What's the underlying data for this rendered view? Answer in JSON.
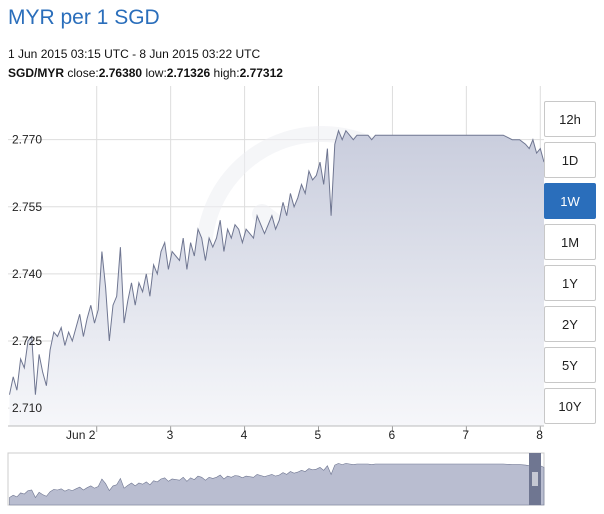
{
  "header": {
    "title": "MYR per 1 SGD",
    "range": "1 Jun 2015 03:15 UTC - 8 Jun 2015 03:22 UTC",
    "pair": "SGD/MYR",
    "close_label": "close:",
    "close_value": "2.76380",
    "low_label": "low:",
    "low_value": "2.71326",
    "high_label": "high:",
    "high_value": "2.77312"
  },
  "periods": [
    {
      "label": "12h",
      "active": false
    },
    {
      "label": "1D",
      "active": false
    },
    {
      "label": "1W",
      "active": true
    },
    {
      "label": "1M",
      "active": false
    },
    {
      "label": "1Y",
      "active": false
    },
    {
      "label": "2Y",
      "active": false
    },
    {
      "label": "5Y",
      "active": false
    },
    {
      "label": "10Y",
      "active": false
    }
  ],
  "colors": {
    "line": "#6f7691",
    "area_top": "#c9cddd",
    "area_bottom": "#f6f7fa",
    "grid": "#dddddd",
    "accent": "#2a6ebb",
    "nav_fill": "#b9bdd0",
    "nav_handle": "#6f7691"
  },
  "chart_data": {
    "type": "area",
    "title": "MYR per 1 SGD",
    "xlabel": "",
    "ylabel": "",
    "ylim": [
      2.706,
      2.782
    ],
    "xlim": [
      0.8,
      8.05
    ],
    "yticks": [
      2.71,
      2.725,
      2.74,
      2.755,
      2.77
    ],
    "ytick_labels": [
      "2.710",
      "2.725",
      "2.740",
      "2.755",
      "2.770"
    ],
    "xticks": [
      {
        "x": 2,
        "label": "Jun 2"
      },
      {
        "x": 3,
        "label": "3"
      },
      {
        "x": 4,
        "label": "4"
      },
      {
        "x": 5,
        "label": "5"
      },
      {
        "x": 6,
        "label": "6"
      },
      {
        "x": 7,
        "label": "7"
      },
      {
        "x": 8,
        "label": "8"
      }
    ],
    "grid": true,
    "series": [
      {
        "x": [
          0.82,
          0.87,
          0.92,
          0.97,
          1.02,
          1.07,
          1.12,
          1.17,
          1.22,
          1.27,
          1.32,
          1.37,
          1.42,
          1.47,
          1.52,
          1.57,
          1.62,
          1.67,
          1.72,
          1.77,
          1.82,
          1.87,
          1.92,
          1.97,
          2.02,
          2.07,
          2.12,
          2.17,
          2.22,
          2.27,
          2.32,
          2.37,
          2.42,
          2.47,
          2.52,
          2.57,
          2.62,
          2.67,
          2.72,
          2.77,
          2.82,
          2.87,
          2.92,
          2.97,
          3.02,
          3.07,
          3.12,
          3.17,
          3.22,
          3.27,
          3.32,
          3.37,
          3.42,
          3.47,
          3.52,
          3.57,
          3.62,
          3.67,
          3.72,
          3.77,
          3.82,
          3.87,
          3.92,
          3.97,
          4.02,
          4.07,
          4.12,
          4.17,
          4.22,
          4.27,
          4.32,
          4.37,
          4.42,
          4.47,
          4.52,
          4.57,
          4.62,
          4.67,
          4.72,
          4.77,
          4.82,
          4.87,
          4.92,
          4.97,
          5.02,
          5.07,
          5.12,
          5.17,
          5.22,
          5.27,
          5.32,
          5.37,
          5.42,
          5.47,
          5.52,
          5.57,
          5.62,
          5.67,
          5.72,
          5.77,
          5.82,
          5.87,
          5.92,
          5.97,
          6.5,
          7.0,
          7.5,
          7.62,
          7.72,
          7.8,
          7.85,
          7.9,
          7.95,
          8.0,
          8.05
        ],
        "y": [
          2.713,
          2.717,
          2.714,
          2.721,
          2.719,
          2.725,
          2.726,
          2.713,
          2.722,
          2.718,
          2.715,
          2.723,
          2.727,
          2.726,
          2.728,
          2.724,
          2.727,
          2.725,
          2.728,
          2.731,
          2.726,
          2.73,
          2.733,
          2.729,
          2.732,
          2.745,
          2.737,
          2.725,
          2.733,
          2.735,
          2.746,
          2.729,
          2.734,
          2.738,
          2.733,
          2.738,
          2.736,
          2.74,
          2.735,
          2.742,
          2.74,
          2.745,
          2.747,
          2.741,
          2.745,
          2.744,
          2.743,
          2.748,
          2.741,
          2.747,
          2.744,
          2.75,
          2.748,
          2.743,
          2.748,
          2.746,
          2.748,
          2.752,
          2.745,
          2.75,
          2.748,
          2.751,
          2.75,
          2.747,
          2.75,
          2.749,
          2.748,
          2.753,
          2.751,
          2.749,
          2.751,
          2.753,
          2.75,
          2.752,
          2.756,
          2.753,
          2.758,
          2.755,
          2.757,
          2.76,
          2.758,
          2.763,
          2.761,
          2.762,
          2.765,
          2.76,
          2.768,
          2.753,
          2.769,
          2.772,
          2.77,
          2.772,
          2.771,
          2.77,
          2.771,
          2.771,
          2.771,
          2.771,
          2.77,
          2.771,
          2.771,
          2.771,
          2.771,
          2.771,
          2.771,
          2.771,
          2.771,
          2.77,
          2.77,
          2.769,
          2.768,
          2.77,
          2.767,
          2.768,
          2.765
        ]
      }
    ]
  }
}
